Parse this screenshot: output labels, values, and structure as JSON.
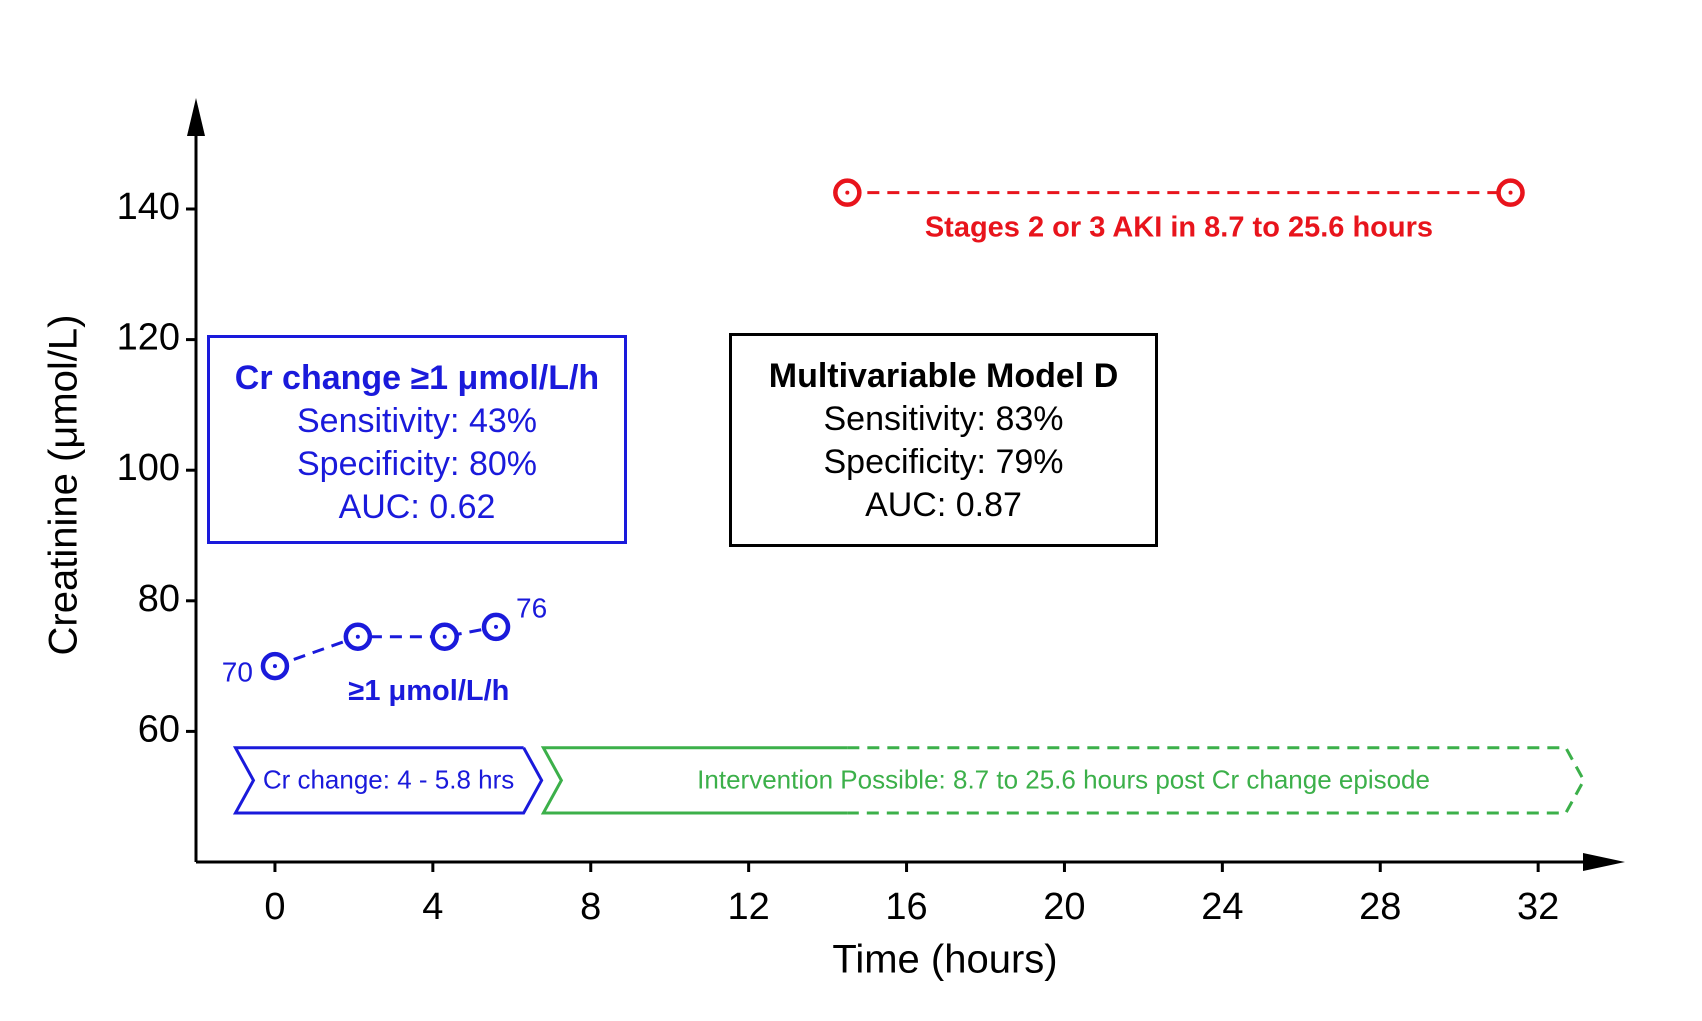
{
  "chart_data": {
    "type": "line",
    "xlabel": "Time (hours)",
    "ylabel": "Creatinine (μmol/L)",
    "xlim": [
      -2,
      34.2
    ],
    "ylim": [
      40,
      157
    ],
    "xticks": [
      0,
      4,
      8,
      12,
      16,
      20,
      24,
      28,
      32
    ],
    "yticks": [
      60,
      80,
      100,
      120,
      140
    ],
    "grid": false,
    "series": [
      {
        "color": "#1a1adb",
        "x": [
          0,
          2.1,
          4.3,
          5.6
        ],
        "values": [
          70,
          74.5,
          74.5,
          76
        ],
        "value_labels": [
          "70",
          null,
          null,
          "76"
        ]
      },
      {
        "color": "#e8141c",
        "x": [
          14.5,
          31.3
        ],
        "values": [
          142.5,
          142.5
        ]
      }
    ],
    "annotations": [
      {
        "text": "≥1 μmol/L/h",
        "x": 3.9,
        "y": 66,
        "color": "#1a1adb"
      },
      {
        "text": "Stages 2 or 3 AKI in 8.7 to 25.6 hours",
        "x": 22.9,
        "y": 137,
        "color": "#e8141c"
      }
    ],
    "bands": [
      {
        "label": "Cr change: 4 - 5.8 hrs",
        "start": -1,
        "end": 6.3,
        "y": [
          47.5,
          57.5
        ],
        "color": "#1a1adb"
      },
      {
        "label": "Intervention Possible: 8.7 to 25.6 hours post Cr change episode",
        "start": 6.8,
        "solid_end": 14.5,
        "end": 32.7,
        "y": [
          47.5,
          57.5
        ],
        "color": "#3cb04a"
      }
    ],
    "boxes": [
      {
        "title": "Cr change ≥1 μmol/L/h",
        "lines": [
          "Sensitivity: 43%",
          "Specificity: 80%",
          "AUC: 0.62"
        ],
        "color": "#1a1adb"
      },
      {
        "title": "Multivariable Model D",
        "lines": [
          "Sensitivity: 83%",
          "Specificity: 79%",
          "AUC: 0.87"
        ],
        "color": "#000000"
      }
    ]
  }
}
